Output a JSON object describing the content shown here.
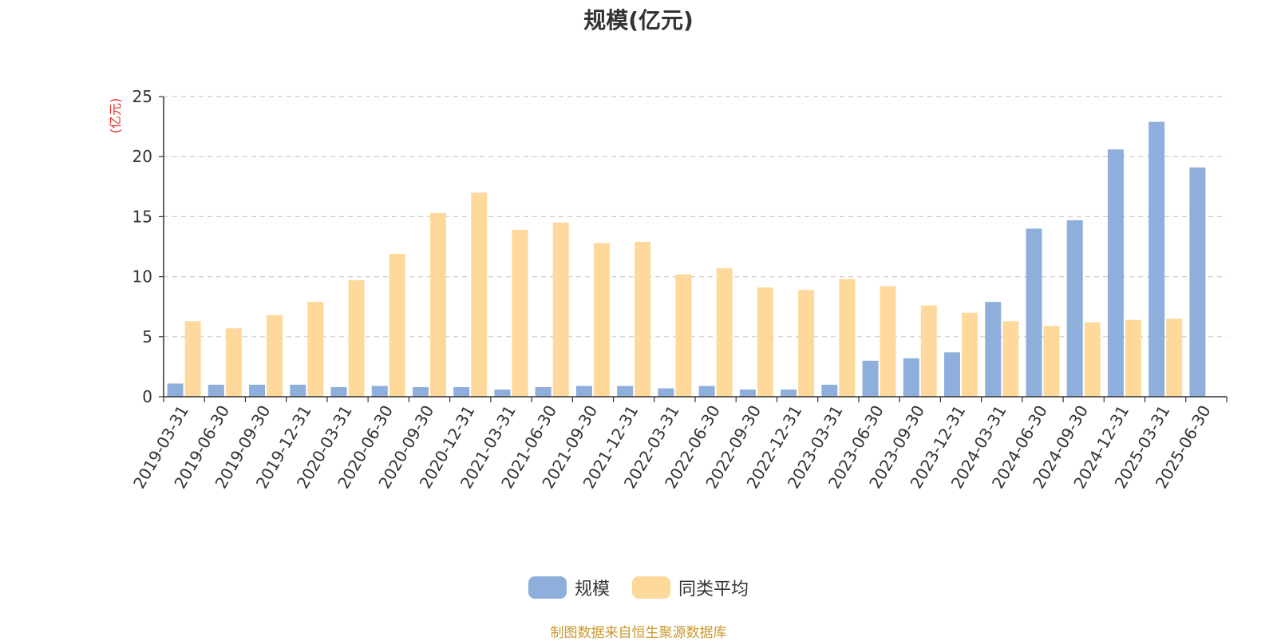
{
  "chart_data": {
    "type": "bar",
    "title": "规模(亿元)",
    "ylabel": "(亿元)",
    "ylim": [
      0,
      25
    ],
    "yticks": [
      0,
      5,
      10,
      15,
      20,
      25
    ],
    "grid": true,
    "legend_position": "bottom",
    "categories": [
      "2019-03-31",
      "2019-06-30",
      "2019-09-30",
      "2019-12-31",
      "2020-03-31",
      "2020-06-30",
      "2020-09-30",
      "2020-12-31",
      "2021-03-31",
      "2021-06-30",
      "2021-09-30",
      "2021-12-31",
      "2022-03-31",
      "2022-06-30",
      "2022-09-30",
      "2022-12-31",
      "2023-03-31",
      "2023-06-30",
      "2023-09-30",
      "2023-12-31",
      "2024-03-31",
      "2024-06-30",
      "2024-09-30",
      "2024-12-31",
      "2025-03-31",
      "2025-06-30"
    ],
    "series": [
      {
        "name": "规模",
        "color": "#8eaedb",
        "values": [
          1.1,
          1.0,
          1.0,
          1.0,
          0.8,
          0.9,
          0.8,
          0.8,
          0.6,
          0.8,
          0.9,
          0.9,
          0.7,
          0.9,
          0.6,
          0.6,
          1.0,
          3.0,
          3.2,
          3.7,
          7.9,
          14.0,
          14.7,
          20.6,
          22.9,
          19.1
        ]
      },
      {
        "name": "同类平均",
        "color": "#fed99b",
        "values": [
          6.3,
          5.7,
          6.8,
          7.9,
          9.7,
          11.9,
          15.3,
          17.0,
          13.9,
          14.5,
          12.8,
          12.9,
          10.2,
          10.7,
          9.1,
          8.9,
          9.8,
          9.2,
          7.6,
          7.0,
          6.3,
          5.9,
          6.2,
          6.4,
          6.5,
          null
        ]
      }
    ],
    "ylabel_color": "#e8312a"
  },
  "source_note": "制图数据来自恒生聚源数据库",
  "source_color": "#c99a2e"
}
